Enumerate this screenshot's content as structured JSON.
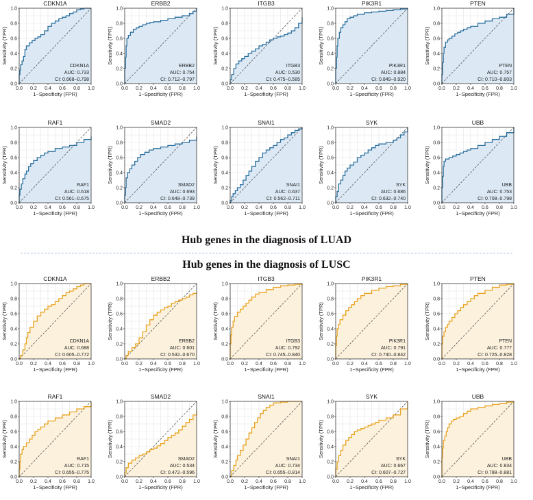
{
  "headings": {
    "luad": "Hub genes in the diagnosis of LUAD",
    "lusc": "Hub genes in the diagnosis of LUSC"
  },
  "axis": {
    "xlabel": "1−Specificity (FPR)",
    "ylabel": "Sensitivity (TPR)",
    "xticks": [
      "0.0",
      "0.2",
      "0.4",
      "0.6",
      "0.8",
      "1.0"
    ],
    "yticks": [
      "0.0",
      "0.2",
      "0.4",
      "0.6",
      "0.8",
      "1.0"
    ]
  },
  "colors": {
    "luad_line": "#2a6f9e",
    "luad_fill": "#dce9f5",
    "lusc_line": "#e8a21f",
    "lusc_fill": "#fcf1dc",
    "diagonal": "#555555",
    "grid": "#e3e3e3"
  },
  "chart_data": [
    {
      "type": "line",
      "group": "LUAD",
      "title": "CDKN1A",
      "gene": "CDKN1A",
      "auc": "AUC: 0.733",
      "ci": "CI: 0.668–0.798",
      "xlim": [
        0,
        1
      ],
      "ylim": [
        0,
        1
      ],
      "grid": true,
      "x": [
        0,
        0,
        0.01,
        0.02,
        0.04,
        0.06,
        0.08,
        0.1,
        0.14,
        0.18,
        0.22,
        0.26,
        0.3,
        0.35,
        0.4,
        0.45,
        0.5,
        0.55,
        0.6,
        0.65,
        0.7,
        0.75,
        0.8,
        0.85,
        0.9,
        1
      ],
      "y": [
        0,
        0.12,
        0.18,
        0.25,
        0.3,
        0.36,
        0.45,
        0.5,
        0.54,
        0.57,
        0.6,
        0.62,
        0.65,
        0.7,
        0.76,
        0.8,
        0.83,
        0.86,
        0.88,
        0.9,
        0.93,
        0.95,
        0.98,
        0.99,
        1,
        1
      ]
    },
    {
      "type": "line",
      "group": "LUAD",
      "title": "ERBB2",
      "gene": "ERBB2",
      "auc": "AUC: 0.754",
      "ci": "CI: 0.712–0.797",
      "xlim": [
        0,
        1
      ],
      "ylim": [
        0,
        1
      ],
      "grid": true,
      "x": [
        0,
        0,
        0.01,
        0.02,
        0.03,
        0.05,
        0.08,
        0.12,
        0.16,
        0.2,
        0.25,
        0.3,
        0.35,
        0.4,
        0.5,
        0.6,
        0.7,
        0.8,
        0.9,
        0.95,
        1
      ],
      "y": [
        0,
        0.2,
        0.35,
        0.5,
        0.6,
        0.64,
        0.68,
        0.72,
        0.74,
        0.76,
        0.78,
        0.8,
        0.81,
        0.82,
        0.84,
        0.86,
        0.88,
        0.9,
        0.93,
        0.96,
        1
      ]
    },
    {
      "type": "line",
      "group": "LUAD",
      "title": "ITGB3",
      "gene": "ITGB3",
      "auc": "AUC: 0.530",
      "ci": "CI: 0.475–0.585",
      "xlim": [
        0,
        1
      ],
      "ylim": [
        0,
        1
      ],
      "grid": true,
      "x": [
        0,
        0,
        0.02,
        0.05,
        0.08,
        0.12,
        0.16,
        0.2,
        0.25,
        0.3,
        0.35,
        0.4,
        0.45,
        0.5,
        0.55,
        0.6,
        0.65,
        0.7,
        0.75,
        0.8,
        0.85,
        0.9,
        0.95,
        1
      ],
      "y": [
        0,
        0.05,
        0.12,
        0.2,
        0.26,
        0.3,
        0.33,
        0.36,
        0.4,
        0.43,
        0.46,
        0.5,
        0.52,
        0.55,
        0.58,
        0.6,
        0.62,
        0.63,
        0.65,
        0.67,
        0.7,
        0.74,
        0.8,
        0.88
      ]
    },
    {
      "type": "line",
      "group": "LUAD",
      "title": "PIK3R1",
      "gene": "PIK3R1",
      "auc": "AUC: 0.884",
      "ci": "CI: 0.849–0.920",
      "xlim": [
        0,
        1
      ],
      "ylim": [
        0,
        1
      ],
      "grid": true,
      "x": [
        0,
        0,
        0.01,
        0.02,
        0.03,
        0.05,
        0.07,
        0.1,
        0.13,
        0.16,
        0.2,
        0.25,
        0.3,
        0.4,
        0.5,
        0.6,
        0.7,
        0.8,
        0.9,
        1
      ],
      "y": [
        0,
        0.2,
        0.35,
        0.5,
        0.6,
        0.68,
        0.74,
        0.78,
        0.82,
        0.86,
        0.88,
        0.9,
        0.92,
        0.94,
        0.95,
        0.96,
        0.97,
        0.98,
        0.99,
        1
      ]
    },
    {
      "type": "line",
      "group": "LUAD",
      "title": "PTEN",
      "gene": "PTEN",
      "auc": "AUC: 0.757",
      "ci": "CI: 0.710–0.803",
      "xlim": [
        0,
        1
      ],
      "ylim": [
        0,
        1
      ],
      "grid": true,
      "x": [
        0,
        0,
        0.01,
        0.02,
        0.03,
        0.05,
        0.08,
        0.1,
        0.14,
        0.18,
        0.22,
        0.26,
        0.3,
        0.35,
        0.4,
        0.5,
        0.6,
        0.7,
        0.8,
        0.9,
        1
      ],
      "y": [
        0,
        0.12,
        0.28,
        0.4,
        0.48,
        0.55,
        0.58,
        0.6,
        0.63,
        0.66,
        0.68,
        0.7,
        0.72,
        0.74,
        0.76,
        0.8,
        0.83,
        0.86,
        0.88,
        0.92,
        1
      ]
    },
    {
      "type": "line",
      "group": "LUAD",
      "title": "RAF1",
      "gene": "RAF1",
      "auc": "AUC: 0.618",
      "ci": "CI: 0.561–0.675",
      "xlim": [
        0,
        1
      ],
      "ylim": [
        0,
        1
      ],
      "grid": true,
      "x": [
        0,
        0,
        0.01,
        0.03,
        0.05,
        0.08,
        0.1,
        0.13,
        0.16,
        0.2,
        0.25,
        0.3,
        0.35,
        0.4,
        0.5,
        0.6,
        0.7,
        0.8,
        0.9,
        1
      ],
      "y": [
        0,
        0.1,
        0.18,
        0.25,
        0.32,
        0.38,
        0.42,
        0.48,
        0.52,
        0.56,
        0.6,
        0.63,
        0.66,
        0.68,
        0.72,
        0.74,
        0.76,
        0.8,
        0.84,
        0.88
      ]
    },
    {
      "type": "line",
      "group": "LUAD",
      "title": "SMAD2",
      "gene": "SMAD2",
      "auc": "AUC: 0.693",
      "ci": "CI: 0.648–0.739",
      "xlim": [
        0,
        1
      ],
      "ylim": [
        0,
        1
      ],
      "grid": true,
      "x": [
        0,
        0,
        0.01,
        0.02,
        0.04,
        0.07,
        0.1,
        0.14,
        0.18,
        0.22,
        0.28,
        0.34,
        0.4,
        0.5,
        0.6,
        0.7,
        0.8,
        0.9,
        1
      ],
      "y": [
        0,
        0.1,
        0.2,
        0.33,
        0.4,
        0.45,
        0.5,
        0.55,
        0.6,
        0.64,
        0.67,
        0.7,
        0.72,
        0.74,
        0.76,
        0.78,
        0.8,
        0.83,
        0.88
      ]
    },
    {
      "type": "line",
      "group": "LUAD",
      "title": "SNAI1",
      "gene": "SNAI1",
      "auc": "AUC: 0.637",
      "ci": "CI: 0.562–0.711",
      "xlim": [
        0,
        1
      ],
      "ylim": [
        0,
        1
      ],
      "grid": true,
      "x": [
        0,
        0,
        0.02,
        0.04,
        0.07,
        0.1,
        0.14,
        0.18,
        0.22,
        0.26,
        0.3,
        0.35,
        0.4,
        0.45,
        0.5,
        0.55,
        0.6,
        0.65,
        0.7,
        0.75,
        0.8,
        0.85,
        0.9,
        0.95,
        1
      ],
      "y": [
        0,
        0.03,
        0.08,
        0.12,
        0.16,
        0.2,
        0.24,
        0.3,
        0.36,
        0.42,
        0.48,
        0.55,
        0.6,
        0.66,
        0.7,
        0.73,
        0.76,
        0.8,
        0.84,
        0.86,
        0.9,
        0.93,
        0.96,
        0.98,
        1
      ]
    },
    {
      "type": "line",
      "group": "LUAD",
      "title": "SYK",
      "gene": "SYK",
      "auc": "AUC: 0.686",
      "ci": "CI: 0.632–0.740",
      "xlim": [
        0,
        1
      ],
      "ylim": [
        0,
        1
      ],
      "grid": true,
      "x": [
        0,
        0,
        0.02,
        0.04,
        0.07,
        0.1,
        0.13,
        0.16,
        0.2,
        0.25,
        0.3,
        0.35,
        0.4,
        0.45,
        0.5,
        0.55,
        0.6,
        0.7,
        0.8,
        0.85,
        0.9,
        0.95,
        1
      ],
      "y": [
        0,
        0.08,
        0.15,
        0.25,
        0.3,
        0.36,
        0.42,
        0.46,
        0.5,
        0.54,
        0.6,
        0.63,
        0.66,
        0.7,
        0.73,
        0.76,
        0.78,
        0.8,
        0.83,
        0.86,
        0.9,
        0.94,
        1
      ]
    },
    {
      "type": "line",
      "group": "LUAD",
      "title": "UBB",
      "gene": "UBB",
      "auc": "AUC: 0.753",
      "ci": "CI: 0.708–0.798",
      "xlim": [
        0,
        1
      ],
      "ylim": [
        0,
        1
      ],
      "grid": true,
      "x": [
        0,
        0,
        0.01,
        0.02,
        0.03,
        0.05,
        0.1,
        0.15,
        0.2,
        0.25,
        0.3,
        0.35,
        0.4,
        0.5,
        0.6,
        0.7,
        0.8,
        0.9,
        1
      ],
      "y": [
        0,
        0.2,
        0.35,
        0.48,
        0.55,
        0.58,
        0.6,
        0.62,
        0.64,
        0.66,
        0.68,
        0.7,
        0.72,
        0.76,
        0.8,
        0.84,
        0.88,
        0.93,
        1
      ]
    },
    {
      "type": "line",
      "group": "LUSC",
      "title": "CDKN1A",
      "gene": "CDKN1A",
      "auc": "AUC: 0.688",
      "ci": "CI: 0.605–0.772",
      "xlim": [
        0,
        1
      ],
      "ylim": [
        0,
        1
      ],
      "grid": true,
      "x": [
        0,
        0.02,
        0.05,
        0.08,
        0.1,
        0.12,
        0.15,
        0.2,
        0.25,
        0.3,
        0.35,
        0.4,
        0.45,
        0.5,
        0.55,
        0.6,
        0.65,
        0.7,
        0.75,
        0.8,
        0.85,
        0.9,
        0.95,
        1
      ],
      "y": [
        0,
        0.05,
        0.12,
        0.2,
        0.28,
        0.35,
        0.42,
        0.5,
        0.57,
        0.62,
        0.66,
        0.7,
        0.72,
        0.76,
        0.8,
        0.84,
        0.88,
        0.9,
        0.93,
        0.96,
        0.98,
        1,
        1,
        1
      ]
    },
    {
      "type": "line",
      "group": "LUSC",
      "title": "ERBB2",
      "gene": "ERBB2",
      "auc": "AUC: 0.601",
      "ci": "CI: 0.532–0.670",
      "xlim": [
        0,
        1
      ],
      "ylim": [
        0,
        1
      ],
      "grid": true,
      "x": [
        0,
        0.02,
        0.05,
        0.1,
        0.15,
        0.2,
        0.25,
        0.3,
        0.35,
        0.4,
        0.45,
        0.5,
        0.55,
        0.6,
        0.65,
        0.7,
        0.75,
        0.8,
        0.85,
        0.9,
        0.95,
        1
      ],
      "y": [
        0,
        0.05,
        0.1,
        0.15,
        0.2,
        0.28,
        0.36,
        0.45,
        0.52,
        0.58,
        0.62,
        0.65,
        0.68,
        0.7,
        0.74,
        0.76,
        0.78,
        0.8,
        0.82,
        0.85,
        0.87,
        0.88
      ]
    },
    {
      "type": "line",
      "group": "LUSC",
      "title": "ITGB3",
      "gene": "ITGB3",
      "auc": "AUC: 0.792",
      "ci": "CI: 0.745–0.840",
      "xlim": [
        0,
        1
      ],
      "ylim": [
        0,
        1
      ],
      "grid": true,
      "x": [
        0,
        0,
        0.01,
        0.02,
        0.04,
        0.06,
        0.1,
        0.14,
        0.18,
        0.22,
        0.26,
        0.3,
        0.35,
        0.4,
        0.5,
        0.6,
        0.7,
        0.8,
        0.9,
        1
      ],
      "y": [
        0,
        0.2,
        0.32,
        0.42,
        0.5,
        0.56,
        0.62,
        0.66,
        0.7,
        0.74,
        0.78,
        0.82,
        0.86,
        0.88,
        0.92,
        0.95,
        0.97,
        0.98,
        0.99,
        1
      ]
    },
    {
      "type": "line",
      "group": "LUSC",
      "title": "PIK3R1",
      "gene": "PIK3R1",
      "auc": "AUC: 0.791",
      "ci": "CI: 0.740–0.842",
      "xlim": [
        0,
        1
      ],
      "ylim": [
        0,
        1
      ],
      "grid": true,
      "x": [
        0,
        0,
        0.01,
        0.02,
        0.04,
        0.06,
        0.1,
        0.14,
        0.18,
        0.22,
        0.26,
        0.3,
        0.35,
        0.4,
        0.5,
        0.6,
        0.7,
        0.8,
        0.9,
        1
      ],
      "y": [
        0,
        0.18,
        0.3,
        0.4,
        0.46,
        0.52,
        0.58,
        0.64,
        0.68,
        0.72,
        0.76,
        0.8,
        0.84,
        0.87,
        0.91,
        0.94,
        0.96,
        0.97,
        0.99,
        1
      ]
    },
    {
      "type": "line",
      "group": "LUSC",
      "title": "PTEN",
      "gene": "PTEN",
      "auc": "AUC: 0.777",
      "ci": "CI: 0.725–0.828",
      "xlim": [
        0,
        1
      ],
      "ylim": [
        0,
        1
      ],
      "grid": true,
      "x": [
        0,
        0,
        0.01,
        0.03,
        0.05,
        0.08,
        0.1,
        0.14,
        0.18,
        0.22,
        0.26,
        0.3,
        0.35,
        0.4,
        0.45,
        0.5,
        0.6,
        0.7,
        0.8,
        0.9,
        1
      ],
      "y": [
        0,
        0.2,
        0.3,
        0.36,
        0.42,
        0.46,
        0.5,
        0.55,
        0.6,
        0.64,
        0.68,
        0.72,
        0.76,
        0.8,
        0.84,
        0.87,
        0.91,
        0.95,
        0.98,
        0.99,
        1
      ]
    },
    {
      "type": "line",
      "group": "LUSC",
      "title": "RAF1",
      "gene": "RAF1",
      "auc": "AUC: 0.715",
      "ci": "CI: 0.655–0.775",
      "xlim": [
        0,
        1
      ],
      "ylim": [
        0,
        1
      ],
      "grid": true,
      "x": [
        0,
        0,
        0.01,
        0.02,
        0.04,
        0.06,
        0.1,
        0.14,
        0.18,
        0.22,
        0.26,
        0.3,
        0.35,
        0.4,
        0.5,
        0.6,
        0.7,
        0.8,
        0.9,
        1
      ],
      "y": [
        0,
        0.1,
        0.2,
        0.3,
        0.36,
        0.4,
        0.45,
        0.5,
        0.55,
        0.6,
        0.63,
        0.66,
        0.7,
        0.74,
        0.78,
        0.82,
        0.86,
        0.9,
        0.93,
        0.98
      ]
    },
    {
      "type": "line",
      "group": "LUSC",
      "title": "SMAD2",
      "gene": "SMAD2",
      "auc": "AUC: 0.534",
      "ci": "CI: 0.472–0.596",
      "xlim": [
        0,
        1
      ],
      "ylim": [
        0,
        1
      ],
      "grid": true,
      "x": [
        0,
        0,
        0.02,
        0.05,
        0.1,
        0.15,
        0.2,
        0.25,
        0.3,
        0.35,
        0.4,
        0.45,
        0.5,
        0.55,
        0.6,
        0.65,
        0.7,
        0.75,
        0.8,
        0.85,
        0.9,
        0.95,
        1
      ],
      "y": [
        0,
        0.05,
        0.12,
        0.18,
        0.22,
        0.25,
        0.28,
        0.3,
        0.33,
        0.36,
        0.38,
        0.41,
        0.44,
        0.48,
        0.52,
        0.55,
        0.58,
        0.62,
        0.67,
        0.72,
        0.76,
        0.82,
        0.88
      ]
    },
    {
      "type": "line",
      "group": "LUSC",
      "title": "SNAI1",
      "gene": "SNAI1",
      "auc": "AUC: 0.734",
      "ci": "CI: 0.655–0.814",
      "xlim": [
        0,
        1
      ],
      "ylim": [
        0,
        1
      ],
      "grid": true,
      "x": [
        0,
        0.02,
        0.05,
        0.08,
        0.1,
        0.14,
        0.18,
        0.22,
        0.26,
        0.3,
        0.34,
        0.38,
        0.42,
        0.46,
        0.5,
        0.55,
        0.6,
        0.7,
        0.8,
        0.9,
        1
      ],
      "y": [
        0,
        0.08,
        0.15,
        0.22,
        0.28,
        0.35,
        0.42,
        0.5,
        0.58,
        0.65,
        0.72,
        0.78,
        0.84,
        0.88,
        0.92,
        0.95,
        0.98,
        0.99,
        1,
        1,
        1
      ]
    },
    {
      "type": "line",
      "group": "LUSC",
      "title": "SYK",
      "gene": "SYK",
      "auc": "AUC: 0.667",
      "ci": "CI: 0.607–0.727",
      "xlim": [
        0,
        1
      ],
      "ylim": [
        0,
        1
      ],
      "grid": true,
      "x": [
        0,
        0,
        0.02,
        0.04,
        0.07,
        0.1,
        0.14,
        0.18,
        0.22,
        0.26,
        0.3,
        0.35,
        0.4,
        0.45,
        0.5,
        0.55,
        0.6,
        0.7,
        0.8,
        0.9,
        1
      ],
      "y": [
        0,
        0.1,
        0.2,
        0.28,
        0.35,
        0.42,
        0.48,
        0.52,
        0.56,
        0.6,
        0.62,
        0.64,
        0.66,
        0.68,
        0.7,
        0.72,
        0.75,
        0.78,
        0.82,
        0.9,
        1
      ]
    },
    {
      "type": "line",
      "group": "LUSC",
      "title": "UBB",
      "gene": "UBB",
      "auc": "AUC: 0.834",
      "ci": "CI: 0.788–0.881",
      "xlim": [
        0,
        1
      ],
      "ylim": [
        0,
        1
      ],
      "grid": true,
      "x": [
        0,
        0,
        0.01,
        0.02,
        0.04,
        0.06,
        0.08,
        0.1,
        0.13,
        0.16,
        0.2,
        0.25,
        0.3,
        0.35,
        0.4,
        0.5,
        0.6,
        0.7,
        0.8,
        0.9,
        1
      ],
      "y": [
        0,
        0.25,
        0.38,
        0.48,
        0.54,
        0.6,
        0.65,
        0.7,
        0.74,
        0.76,
        0.78,
        0.8,
        0.84,
        0.87,
        0.9,
        0.92,
        0.94,
        0.96,
        0.97,
        0.99,
        1
      ]
    }
  ]
}
